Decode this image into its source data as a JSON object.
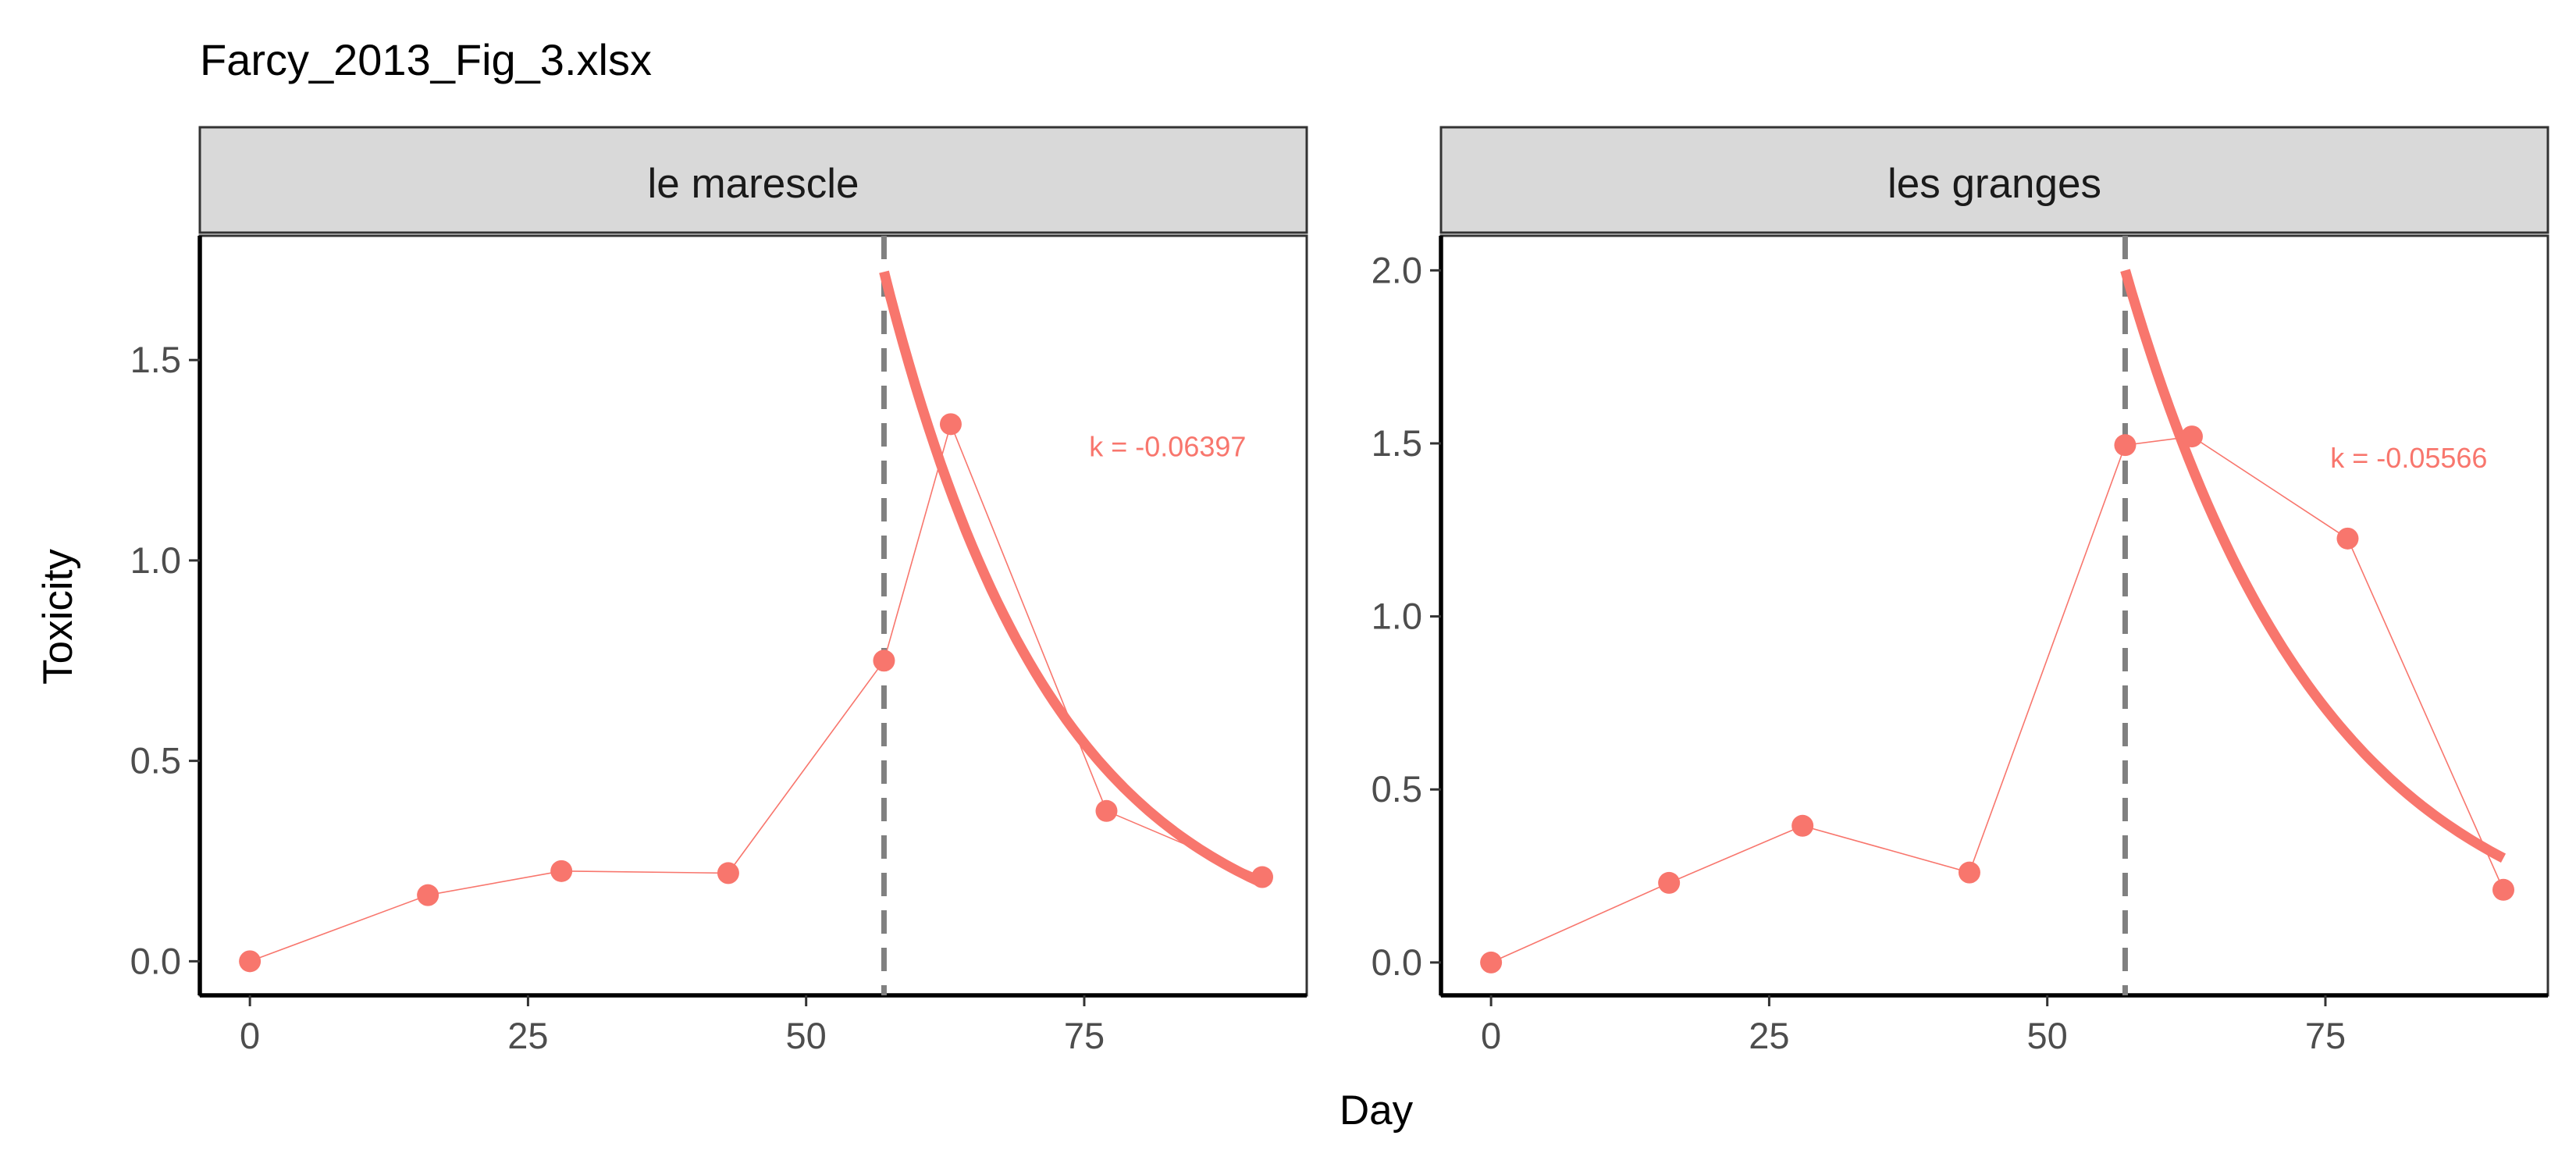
{
  "title": "Farcy_2013_Fig_3.xlsx",
  "chart_data": {
    "type": "line",
    "title": "Farcy_2013_Fig_3.xlsx",
    "xlabel": "Day",
    "ylabel": "Toxicity",
    "point_color": "#F8766D",
    "vline_color": "#808080",
    "panels": [
      {
        "name": "le marescle",
        "xlim": [
          -4.5,
          95
        ],
        "ylim": [
          -0.085,
          1.81
        ],
        "xticks": [
          0,
          25,
          50,
          75
        ],
        "yticks": [
          0.0,
          0.5,
          1.0,
          1.5
        ],
        "ytick_labels": [
          "0.0",
          "0.5",
          "1.0",
          "1.5"
        ],
        "points": [
          {
            "x": 0,
            "y": 0.0
          },
          {
            "x": 16,
            "y": 0.165
          },
          {
            "x": 28,
            "y": 0.225
          },
          {
            "x": 43,
            "y": 0.22
          },
          {
            "x": 57,
            "y": 0.75
          },
          {
            "x": 63,
            "y": 1.34
          },
          {
            "x": 77,
            "y": 0.375
          },
          {
            "x": 91,
            "y": 0.21
          }
        ],
        "vline_x": 57,
        "fit": {
          "x0": 57,
          "y0": 1.72,
          "k": -0.06397,
          "x_end": 91
        },
        "k_label": "k = -0.06397",
        "k_label_pos": {
          "x": 82.5,
          "y": 1.26
        }
      },
      {
        "name": "les granges",
        "xlim": [
          -4.5,
          95
        ],
        "ylim": [
          -0.095,
          2.1
        ],
        "xticks": [
          0,
          25,
          50,
          75
        ],
        "yticks": [
          0.0,
          0.5,
          1.0,
          1.5,
          2.0
        ],
        "ytick_labels": [
          "0.0",
          "0.5",
          "1.0",
          "1.5",
          "2.0"
        ],
        "points": [
          {
            "x": 0,
            "y": 0.0
          },
          {
            "x": 16,
            "y": 0.23
          },
          {
            "x": 28,
            "y": 0.395
          },
          {
            "x": 43,
            "y": 0.26
          },
          {
            "x": 57,
            "y": 1.495
          },
          {
            "x": 63,
            "y": 1.52
          },
          {
            "x": 77,
            "y": 1.225
          },
          {
            "x": 91,
            "y": 0.21
          }
        ],
        "vline_x": 57,
        "fit": {
          "x0": 57,
          "y0": 2.0,
          "k": -0.05566,
          "x_end": 91
        },
        "k_label": "k = -0.05566",
        "k_label_pos": {
          "x": 82.5,
          "y": 1.43
        }
      }
    ]
  }
}
